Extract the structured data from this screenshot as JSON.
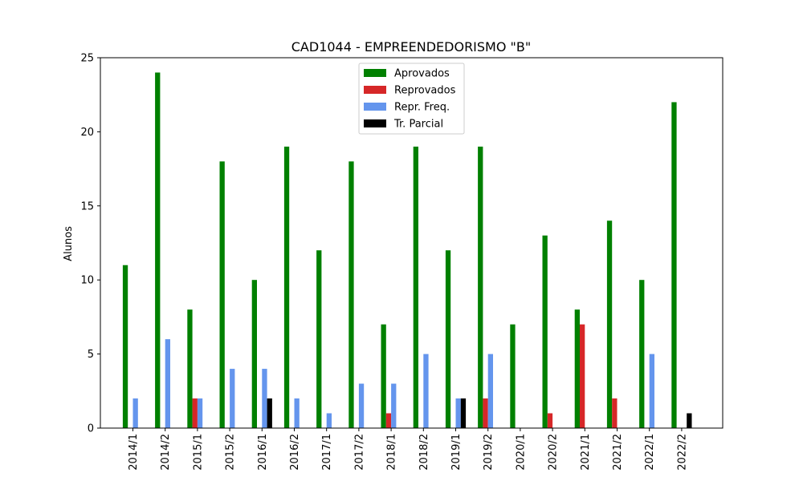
{
  "chart_data": {
    "type": "bar",
    "title": "CAD1044 - EMPREENDEDORISMO \"B\"",
    "xlabel": "",
    "ylabel": "Alunos",
    "ylim": [
      0,
      25
    ],
    "yticks": [
      0,
      5,
      10,
      15,
      20,
      25
    ],
    "legend_position": "top-center",
    "categories": [
      "2014/1",
      "2014/2",
      "2015/1",
      "2015/2",
      "2016/1",
      "2016/2",
      "2017/1",
      "2017/2",
      "2018/1",
      "2018/2",
      "2019/1",
      "2019/2",
      "2020/1",
      "2020/2",
      "2021/1",
      "2021/2",
      "2022/1",
      "2022/2"
    ],
    "series": [
      {
        "name": "Aprovados",
        "color": "#008000",
        "values": [
          11,
          24,
          8,
          18,
          10,
          19,
          12,
          18,
          7,
          19,
          12,
          19,
          7,
          13,
          8,
          14,
          10,
          22
        ]
      },
      {
        "name": "Reprovados",
        "color": "#d62728",
        "values": [
          0,
          0,
          2,
          0,
          0,
          0,
          0,
          0,
          1,
          0,
          0,
          2,
          0,
          1,
          7,
          2,
          0,
          0
        ]
      },
      {
        "name": "Repr. Freq.",
        "color": "#6495ed",
        "values": [
          2,
          6,
          2,
          4,
          4,
          2,
          1,
          3,
          3,
          5,
          2,
          5,
          0,
          0,
          0,
          0,
          5,
          0
        ]
      },
      {
        "name": "Tr. Parcial",
        "color": "#000000",
        "values": [
          0,
          0,
          0,
          0,
          2,
          0,
          0,
          0,
          0,
          0,
          2,
          0,
          0,
          0,
          0,
          0,
          0,
          1
        ]
      }
    ]
  }
}
